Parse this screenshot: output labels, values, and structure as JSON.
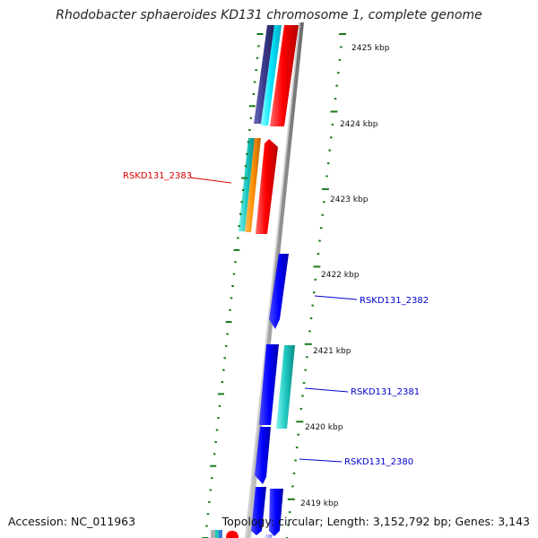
{
  "title": "Rhodobacter sphaeroides KD131 chromosome 1, complete genome",
  "accession": "Accession: NC_011963",
  "topology": "Topology: circular; Length: 3,152,792 bp; Genes: 3,143",
  "colors": {
    "forward_strand": "#ff0000",
    "reverse_strand": "#0000ff",
    "tick": "#1a7a1a",
    "backbone": "#8a8a8a",
    "label_forward": "#dd0000",
    "label_reverse": "#0000cc"
  },
  "kbp_labels": [
    "2425 kbp",
    "2424 kbp",
    "2423 kbp",
    "2422 kbp",
    "2421 kbp",
    "2420 kbp",
    "2419 kbp"
  ],
  "gene_labels": [
    {
      "text": "RSKD131_2383",
      "strand": "forward"
    },
    {
      "text": "RSKD131_2382",
      "strand": "reverse"
    },
    {
      "text": "RSKD131_2381",
      "strand": "reverse"
    },
    {
      "text": "RSKD131_2380",
      "strand": "reverse"
    }
  ]
}
